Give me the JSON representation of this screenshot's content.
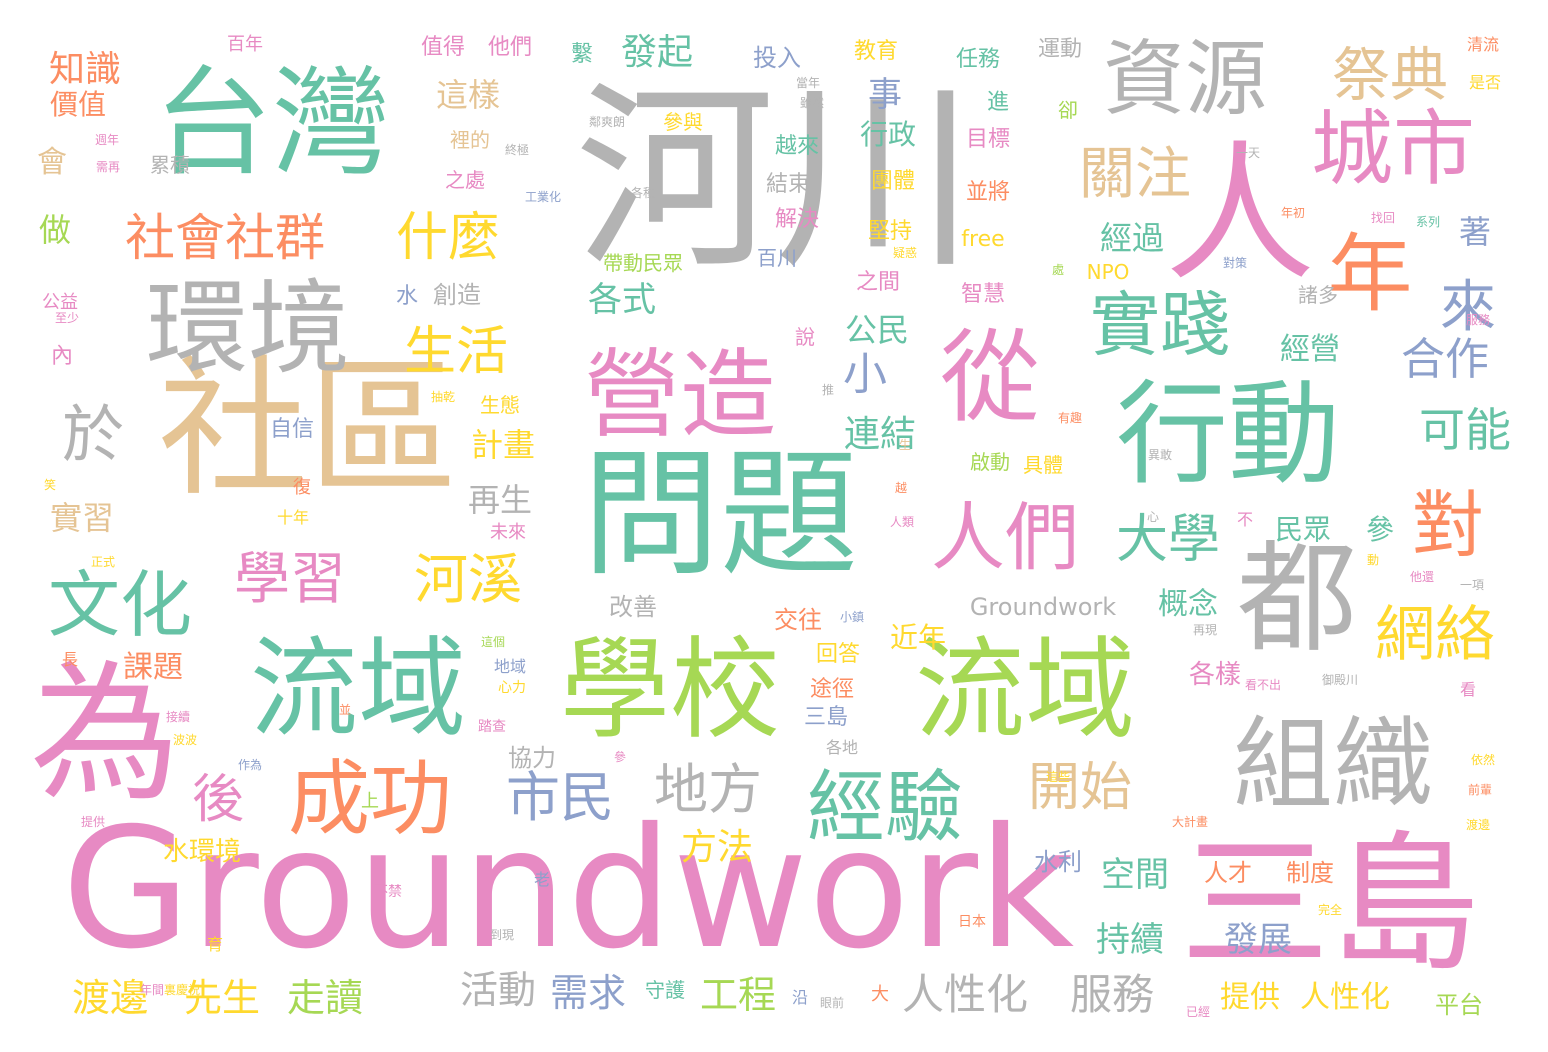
{
  "palette": {
    "green": "#66c2a5",
    "orange": "#fc8d62",
    "blue": "#8da0cb",
    "pink": "#e78ac3",
    "lime": "#a6d854",
    "yellow": "#ffd92f",
    "tan": "#e5c494",
    "gray": "#b3b3b3"
  },
  "words": [
    {
      "text": "河川",
      "color": "gray"
    },
    {
      "text": "Groundwork",
      "color": "pink"
    },
    {
      "text": "問題",
      "color": "green"
    },
    {
      "text": "台灣",
      "color": "green"
    },
    {
      "text": "社區",
      "color": "tan"
    },
    {
      "text": "三島",
      "color": "pink"
    },
    {
      "text": "流域",
      "color": "green"
    },
    {
      "text": "學校",
      "color": "lime"
    },
    {
      "text": "流域",
      "color": "lime"
    },
    {
      "text": "行動",
      "color": "green"
    },
    {
      "text": "環境",
      "color": "gray"
    },
    {
      "text": "營造",
      "color": "pink"
    },
    {
      "text": "人",
      "color": "pink"
    },
    {
      "text": "為",
      "color": "pink"
    },
    {
      "text": "組織",
      "color": "gray"
    },
    {
      "text": "都",
      "color": "gray"
    },
    {
      "text": "資源",
      "color": "gray"
    },
    {
      "text": "城市",
      "color": "pink"
    },
    {
      "text": "從",
      "color": "pink"
    },
    {
      "text": "成功",
      "color": "orange"
    },
    {
      "text": "經驗",
      "color": "green"
    },
    {
      "text": "年",
      "color": "orange"
    },
    {
      "text": "人們",
      "color": "pink"
    },
    {
      "text": "文化",
      "color": "green"
    },
    {
      "text": "於",
      "color": "gray"
    },
    {
      "text": "實踐",
      "color": "green"
    },
    {
      "text": "祭典",
      "color": "tan"
    },
    {
      "text": "關注",
      "color": "tan"
    },
    {
      "text": "學習",
      "color": "pink"
    },
    {
      "text": "河溪",
      "color": "yellow"
    },
    {
      "text": "社會",
      "color": "orange"
    },
    {
      "text": "社群",
      "color": "orange"
    },
    {
      "text": "什麼",
      "color": "yellow"
    },
    {
      "text": "對",
      "color": "orange"
    },
    {
      "text": "網絡",
      "color": "yellow"
    },
    {
      "text": "來",
      "color": "blue"
    },
    {
      "text": "大學",
      "color": "green"
    },
    {
      "text": "開始",
      "color": "tan"
    },
    {
      "text": "市民",
      "color": "blue"
    },
    {
      "text": "地方",
      "color": "gray"
    },
    {
      "text": "生活",
      "color": "yellow"
    },
    {
      "text": "可能",
      "color": "green"
    },
    {
      "text": "合作",
      "color": "blue"
    },
    {
      "text": "後",
      "color": "pink"
    },
    {
      "text": "小",
      "color": "blue"
    },
    {
      "text": "發起",
      "color": "green"
    },
    {
      "text": "知識",
      "color": "orange"
    },
    {
      "text": "連結",
      "color": "green"
    },
    {
      "text": "人性化",
      "color": "gray"
    },
    {
      "text": "服務",
      "color": "gray"
    },
    {
      "text": "渡邊",
      "color": "yellow"
    },
    {
      "text": "先生",
      "color": "yellow"
    },
    {
      "text": "走讀",
      "color": "lime"
    },
    {
      "text": "活動",
      "color": "gray"
    },
    {
      "text": "需求",
      "color": "blue"
    },
    {
      "text": "工程",
      "color": "lime"
    },
    {
      "text": "方法",
      "color": "yellow"
    },
    {
      "text": "持續",
      "color": "green"
    },
    {
      "text": "發展",
      "color": "blue"
    },
    {
      "text": "空間",
      "color": "green"
    },
    {
      "text": "提供",
      "color": "yellow"
    },
    {
      "text": "人性化",
      "color": "yellow"
    },
    {
      "text": "平台",
      "color": "lime"
    },
    {
      "text": "各式",
      "color": "green"
    },
    {
      "text": "這樣",
      "color": "tan"
    },
    {
      "text": "事",
      "color": "blue"
    },
    {
      "text": "行政",
      "color": "green"
    },
    {
      "text": "經過",
      "color": "green"
    },
    {
      "text": "著",
      "color": "blue"
    },
    {
      "text": "經營",
      "color": "green"
    },
    {
      "text": "計畫",
      "color": "yellow"
    },
    {
      "text": "再生",
      "color": "gray"
    },
    {
      "text": "公民",
      "color": "green"
    },
    {
      "text": "概念",
      "color": "green"
    },
    {
      "text": "實習",
      "color": "tan"
    },
    {
      "text": "課題",
      "color": "orange"
    },
    {
      "text": "水環境",
      "color": "yellow"
    },
    {
      "text": "做",
      "color": "lime"
    },
    {
      "text": "會",
      "color": "tan"
    },
    {
      "text": "價值",
      "color": "orange"
    },
    {
      "text": "Groundwork",
      "color": "gray"
    },
    {
      "text": "民眾",
      "color": "green"
    },
    {
      "text": "參",
      "color": "green"
    },
    {
      "text": "近年",
      "color": "yellow"
    },
    {
      "text": "協力",
      "color": "gray"
    },
    {
      "text": "各樣",
      "color": "pink"
    },
    {
      "text": "制度",
      "color": "orange"
    },
    {
      "text": "人才",
      "color": "orange"
    },
    {
      "text": "水利",
      "color": "blue"
    },
    {
      "text": "交往",
      "color": "orange"
    },
    {
      "text": "改善",
      "color": "gray"
    },
    {
      "text": "回答",
      "color": "yellow"
    },
    {
      "text": "途徑",
      "color": "orange"
    },
    {
      "text": "三島",
      "color": "blue"
    },
    {
      "text": "創造",
      "color": "gray"
    },
    {
      "text": "水",
      "color": "blue"
    },
    {
      "text": "自信",
      "color": "blue"
    },
    {
      "text": "內",
      "color": "pink"
    },
    {
      "text": "公益",
      "color": "pink"
    },
    {
      "text": "百年",
      "color": "pink"
    },
    {
      "text": "值得",
      "color": "pink"
    },
    {
      "text": "他們",
      "color": "pink"
    },
    {
      "text": "繫",
      "color": "green"
    },
    {
      "text": "投入",
      "color": "blue"
    },
    {
      "text": "教育",
      "color": "yellow"
    },
    {
      "text": "任務",
      "color": "green"
    },
    {
      "text": "運動",
      "color": "gray"
    },
    {
      "text": "清流",
      "color": "orange"
    },
    {
      "text": "是否",
      "color": "yellow"
    },
    {
      "text": "參與",
      "color": "yellow"
    },
    {
      "text": "越來",
      "color": "green"
    },
    {
      "text": "結束",
      "color": "gray"
    },
    {
      "text": "解決",
      "color": "pink"
    },
    {
      "text": "百川",
      "color": "blue"
    },
    {
      "text": "團體",
      "color": "yellow"
    },
    {
      "text": "堅持",
      "color": "yellow"
    },
    {
      "text": "之間",
      "color": "pink"
    },
    {
      "text": "目標",
      "color": "pink"
    },
    {
      "text": "並將",
      "color": "orange"
    },
    {
      "text": "free",
      "color": "yellow"
    },
    {
      "text": "智慧",
      "color": "pink"
    },
    {
      "text": "NPO",
      "color": "yellow"
    },
    {
      "text": "諸多",
      "color": "gray"
    },
    {
      "text": "進",
      "color": "green"
    },
    {
      "text": "卻",
      "color": "lime"
    },
    {
      "text": "累積",
      "color": "gray"
    },
    {
      "text": "裡的",
      "color": "tan"
    },
    {
      "text": "之處",
      "color": "pink"
    },
    {
      "text": "帶動民眾",
      "color": "lime"
    },
    {
      "text": "生態",
      "color": "yellow"
    },
    {
      "text": "啟動",
      "color": "lime"
    },
    {
      "text": "具體",
      "color": "yellow"
    },
    {
      "text": "說",
      "color": "pink"
    },
    {
      "text": "上",
      "color": "lime"
    },
    {
      "text": "復",
      "color": "orange"
    },
    {
      "text": "十年",
      "color": "yellow"
    },
    {
      "text": "未來",
      "color": "pink"
    },
    {
      "text": "長",
      "color": "orange"
    },
    {
      "text": "地域",
      "color": "blue"
    },
    {
      "text": "心力",
      "color": "yellow"
    },
    {
      "text": "踏查",
      "color": "pink"
    },
    {
      "text": "各地",
      "color": "gray"
    },
    {
      "text": "老",
      "color": "blue"
    },
    {
      "text": "大",
      "color": "orange"
    },
    {
      "text": "不",
      "color": "pink"
    },
    {
      "text": "看",
      "color": "pink"
    },
    {
      "text": "守護",
      "color": "green"
    },
    {
      "text": "到現",
      "color": "gray"
    },
    {
      "text": "日本",
      "color": "orange"
    },
    {
      "text": "眼前",
      "color": "gray"
    },
    {
      "text": "已經",
      "color": "pink"
    },
    {
      "text": "完全",
      "color": "yellow"
    },
    {
      "text": "沿",
      "color": "blue"
    },
    {
      "text": "年間",
      "color": "pink"
    },
    {
      "text": "不禁",
      "color": "pink"
    },
    {
      "text": "育",
      "color": "yellow"
    },
    {
      "text": "有趣",
      "color": "orange"
    },
    {
      "text": "服務",
      "color": "pink"
    },
    {
      "text": "異敢",
      "color": "gray"
    },
    {
      "text": "心",
      "color": "gray"
    },
    {
      "text": "再現",
      "color": "gray"
    },
    {
      "text": "看不出",
      "color": "pink"
    },
    {
      "text": "御殿川",
      "color": "gray"
    },
    {
      "text": "一項",
      "color": "gray"
    },
    {
      "text": "他還",
      "color": "pink"
    },
    {
      "text": "動",
      "color": "yellow"
    },
    {
      "text": "依然",
      "color": "yellow"
    },
    {
      "text": "前輩",
      "color": "orange"
    },
    {
      "text": "渡邊",
      "color": "yellow"
    },
    {
      "text": "大計畫",
      "color": "orange"
    },
    {
      "text": "這些",
      "color": "yellow"
    },
    {
      "text": "接續",
      "color": "pink"
    },
    {
      "text": "波波",
      "color": "yellow"
    },
    {
      "text": "作為",
      "color": "blue"
    },
    {
      "text": "提供",
      "color": "pink"
    },
    {
      "text": "裏慶祝",
      "color": "yellow"
    },
    {
      "text": "並",
      "color": "orange"
    },
    {
      "text": "正式",
      "color": "yellow"
    },
    {
      "text": "笑",
      "color": "yellow"
    },
    {
      "text": "抽乾",
      "color": "yellow"
    },
    {
      "text": "至少",
      "color": "pink"
    },
    {
      "text": "週年",
      "color": "pink"
    },
    {
      "text": "需再",
      "color": "pink"
    },
    {
      "text": "終極",
      "color": "gray"
    },
    {
      "text": "鄰爽朗",
      "color": "gray"
    },
    {
      "text": "當年",
      "color": "gray"
    },
    {
      "text": "雖然",
      "color": "gray"
    },
    {
      "text": "工業化",
      "color": "blue"
    },
    {
      "text": "各種",
      "color": "gray"
    },
    {
      "text": "一天",
      "color": "gray"
    },
    {
      "text": "年初",
      "color": "orange"
    },
    {
      "text": "找回",
      "color": "pink"
    },
    {
      "text": "系列",
      "color": "green"
    },
    {
      "text": "對策",
      "color": "blue"
    },
    {
      "text": "疑惑",
      "color": "yellow"
    },
    {
      "text": "處",
      "color": "lime"
    },
    {
      "text": "推",
      "color": "gray"
    },
    {
      "text": "生",
      "color": "tan"
    },
    {
      "text": "越",
      "color": "orange"
    },
    {
      "text": "人類",
      "color": "pink"
    },
    {
      "text": "小鎮",
      "color": "blue"
    },
    {
      "text": "這個",
      "color": "lime"
    },
    {
      "text": "參",
      "color": "pink"
    }
  ]
}
